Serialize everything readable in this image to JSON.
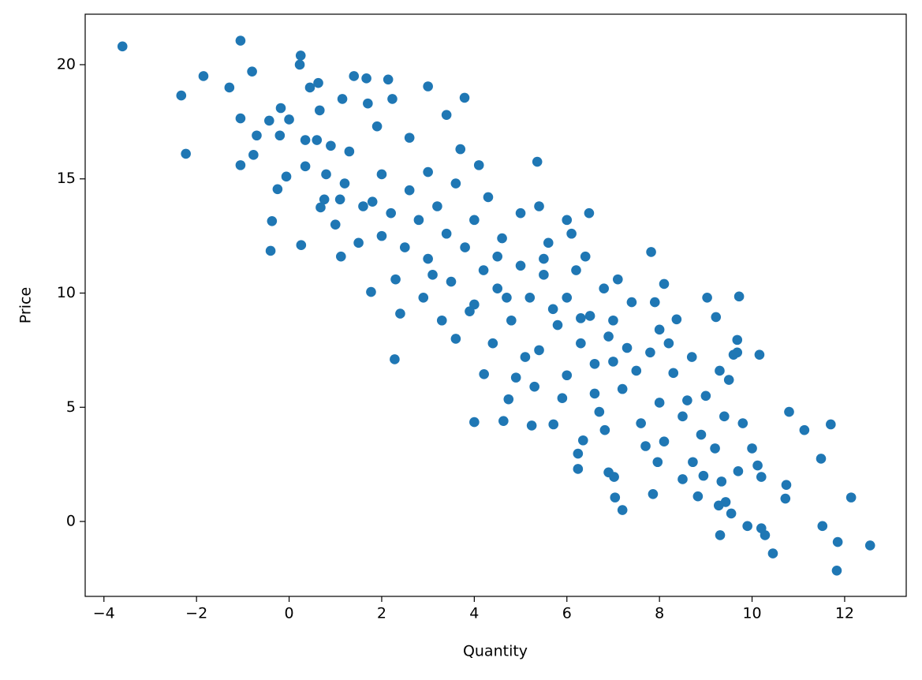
{
  "chart_data": {
    "type": "scatter",
    "x_label": "Quantity",
    "y_label": "Price",
    "color": "#1f77b4",
    "xlim": [
      -4.405,
      13.33
    ],
    "ylim": [
      -3.28,
      22.21
    ],
    "xticks": [
      {
        "value": -4,
        "label": "−4"
      },
      {
        "value": -2,
        "label": "−2"
      },
      0,
      2,
      4,
      6,
      8,
      10,
      12
    ],
    "yticks": [
      0,
      5,
      10,
      15,
      20
    ],
    "x": [
      -3.6,
      -2.33,
      -2.23,
      -1.85,
      -1.29,
      -1.05,
      -1.05,
      -1.05,
      -0.8,
      -0.77,
      -0.7,
      -0.43,
      -0.37,
      -0.4,
      -0.25,
      -0.2,
      -0.18,
      -0.06,
      0.0,
      0.25,
      0.23,
      0.26,
      0.35,
      0.35,
      0.45,
      0.63,
      0.66,
      0.68,
      0.76,
      0.9,
      1.12,
      1.15,
      1.4,
      1.67,
      1.7,
      1.77,
      2.14,
      2.23,
      3.0,
      3.79,
      2.28,
      4.0,
      4.63,
      6.0,
      6.48,
      5.36,
      7.82,
      8.1,
      9.03,
      9.72,
      10.16,
      10.8,
      11.13,
      11.7,
      11.49,
      10.74,
      10.72,
      12.14,
      11.52,
      11.85,
      12.55,
      11.83,
      10.45,
      10.28,
      10.2,
      9.9,
      9.31,
      9.43,
      9.28,
      9.55,
      8.83,
      7.86,
      7.2,
      7.04,
      6.9,
      7.02,
      6.24,
      6.24,
      8.5,
      8.95,
      10.2,
      9.7,
      9.34,
      10.12,
      8.37,
      9.22,
      9.68,
      9.68,
      8.72,
      7.96,
      6.82,
      6.35,
      5.71,
      5.24,
      4.74,
      4.21,
      1,
      1.2,
      1.5,
      1.8,
      2,
      2.2,
      2.5,
      2.6,
      2.8,
      3,
      3,
      3.2,
      3.4,
      3.5,
      3.6,
      3.8,
      4,
      4,
      4.2,
      4.3,
      4.5,
      4.6,
      4.8,
      5,
      5,
      5.2,
      5.4,
      5.5,
      5.6,
      5.8,
      6,
      6,
      6.2,
      6.3,
      6.5,
      6.6,
      6.8,
      7,
      7,
      7.2,
      7.4,
      7.5,
      7.8,
      8,
      8,
      8.3,
      8.5,
      8.7,
      9,
      9.2,
      9.5,
      9.8,
      10,
      1.3,
      0.8,
      1.6,
      2.3,
      2.9,
      3.3,
      4.4,
      4.9,
      5.3,
      5.9,
      6.1,
      5.4,
      4.1,
      3.7,
      2.6,
      1.9,
      6.7,
      7.6,
      8.1,
      8.9,
      9.4,
      7.9,
      7.1,
      6.4,
      2,
      2.4,
      3.9,
      4.7,
      5.7,
      6.9,
      8.6,
      5.1,
      3.1,
      4.5,
      1.1,
      0.6,
      3.4,
      3.6,
      6.6,
      7.3,
      8.2,
      9.6,
      9.3,
      7.7,
      6.3,
      5.5
    ],
    "values": [
      20.8,
      18.65,
      16.1,
      19.5,
      19.0,
      21.05,
      17.65,
      15.6,
      19.7,
      16.05,
      16.9,
      17.55,
      13.15,
      11.85,
      14.55,
      16.9,
      18.1,
      15.1,
      17.6,
      20.4,
      20.0,
      12.1,
      15.55,
      16.7,
      19.0,
      19.2,
      18.0,
      13.75,
      14.1,
      16.45,
      11.6,
      18.5,
      19.5,
      19.4,
      18.3,
      10.05,
      19.35,
      18.5,
      19.05,
      18.55,
      7.1,
      4.35,
      4.4,
      13.2,
      13.5,
      15.75,
      11.8,
      10.4,
      9.8,
      9.85,
      7.3,
      4.8,
      4.0,
      4.25,
      2.75,
      1.6,
      1.0,
      1.05,
      -0.2,
      -0.9,
      -1.05,
      -2.15,
      -1.4,
      -0.6,
      -0.3,
      -0.2,
      -0.6,
      0.85,
      0.7,
      0.35,
      1.1,
      1.2,
      0.5,
      1.05,
      2.15,
      1.95,
      2.3,
      2.97,
      1.85,
      2.0,
      1.95,
      2.2,
      1.75,
      2.45,
      8.85,
      8.95,
      7.95,
      7.4,
      2.6,
      2.6,
      4.0,
      3.55,
      4.25,
      4.2,
      5.35,
      6.45,
      13,
      14.8,
      12.2,
      14,
      15.2,
      13.5,
      12,
      14.5,
      13.2,
      11.5,
      15.3,
      13.8,
      12.6,
      10.5,
      14.8,
      12,
      13.2,
      9.5,
      11,
      14.2,
      10.2,
      12.4,
      8.8,
      11.2,
      13.5,
      9.8,
      7.5,
      10.8,
      12.2,
      8.6,
      9.8,
      6.4,
      11,
      7.8,
      9,
      5.6,
      10.2,
      7,
      8.8,
      5.8,
      9.6,
      6.6,
      7.4,
      5.2,
      8.4,
      6.5,
      4.6,
      7.2,
      5.5,
      3.2,
      6.2,
      4.3,
      3.2,
      16.2,
      15.2,
      13.8,
      10.6,
      9.8,
      8.8,
      7.8,
      6.3,
      5.9,
      5.4,
      12.6,
      13.8,
      15.6,
      16.3,
      16.8,
      17.3,
      4.8,
      4.3,
      3.5,
      3.8,
      4.6,
      9.6,
      10.6,
      11.6,
      12.5,
      9.1,
      9.2,
      9.8,
      9.3,
      8.1,
      5.3,
      7.2,
      10.8,
      11.6,
      14.1,
      16.7,
      17.8,
      8,
      6.9,
      7.6,
      7.8,
      7.3,
      6.6,
      3.3,
      8.9,
      11.5
    ]
  }
}
